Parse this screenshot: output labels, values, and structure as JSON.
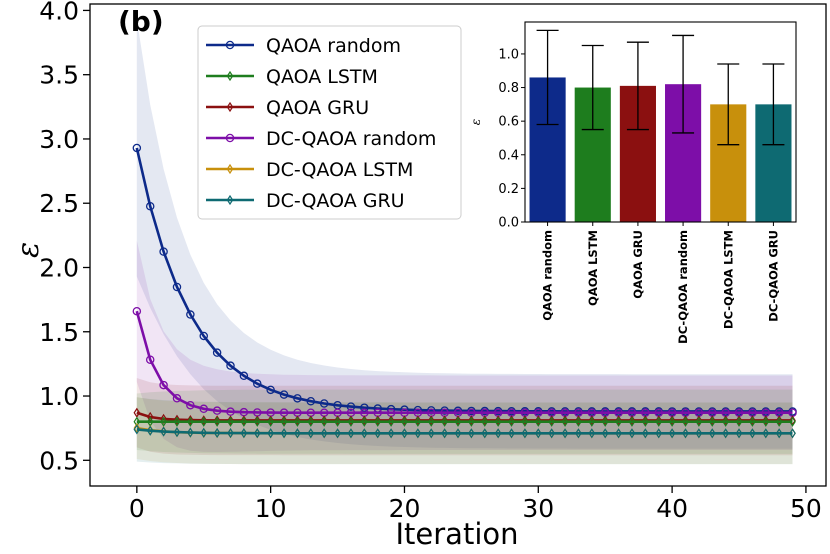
{
  "chart_data": [
    {
      "type": "line",
      "panel_label": "(b)",
      "xlabel": "Iteration",
      "ylabel": "ε",
      "xlim": [
        -3.5,
        51.5
      ],
      "ylim": [
        0.3,
        4.05
      ],
      "xticks": [
        "0",
        "10",
        "20",
        "30",
        "40",
        "50"
      ],
      "yticks": [
        "0.5",
        "1.0",
        "1.5",
        "2.0",
        "2.5",
        "3.0",
        "3.5",
        "4.0"
      ],
      "grid": false,
      "legend_position": "top-center",
      "x": "0..49",
      "series": [
        {
          "name": "QAOA random",
          "color": "#0d2a8a",
          "marker": "circle",
          "start": 2.93,
          "end": 0.88,
          "decay": 0.25,
          "band_start": 1.0,
          "band_end": 0.29
        },
        {
          "name": "QAOA LSTM",
          "color": "#1e7d1e",
          "marker": "diamond",
          "start": 0.8,
          "end": 0.8,
          "decay": 0.5,
          "band_start": 0.22,
          "band_end": 0.25
        },
        {
          "name": "QAOA GRU",
          "color": "#8b1010",
          "marker": "diamond",
          "start": 0.87,
          "end": 0.81,
          "decay": 0.8,
          "band_start": 0.27,
          "band_end": 0.27
        },
        {
          "name": "DC-QAOA random",
          "color": "#7d0ea8",
          "marker": "circle",
          "start": 1.66,
          "end": 0.87,
          "decay": 0.65,
          "band_start": 0.55,
          "band_end": 0.29
        },
        {
          "name": "DC-QAOA LSTM",
          "color": "#c8900c",
          "marker": "diamond",
          "start": 0.75,
          "end": 0.71,
          "decay": 0.5,
          "band_start": 0.24,
          "band_end": 0.24
        },
        {
          "name": "DC-QAOA GRU",
          "color": "#0e6a72",
          "marker": "diamond",
          "start": 0.74,
          "end": 0.71,
          "decay": 0.4,
          "band_start": 0.25,
          "band_end": 0.24
        }
      ]
    },
    {
      "type": "bar",
      "ylabel": "ε",
      "ylim": [
        0.0,
        1.19
      ],
      "yticks": [
        "0.0",
        "0.2",
        "0.4",
        "0.6",
        "0.8",
        "1.0"
      ],
      "categories": [
        "QAOA random",
        "QAOA LSTM",
        "QAOA GRU",
        "DC-QAOA random",
        "DC-QAOA LSTM",
        "DC-QAOA GRU"
      ],
      "values": [
        0.86,
        0.8,
        0.81,
        0.82,
        0.7,
        0.7
      ],
      "errors": [
        0.28,
        0.25,
        0.26,
        0.29,
        0.24,
        0.24
      ],
      "colors": [
        "#0d2a8a",
        "#1e7d1e",
        "#8b1010",
        "#7d0ea8",
        "#c8900c",
        "#0e6a72"
      ]
    }
  ]
}
